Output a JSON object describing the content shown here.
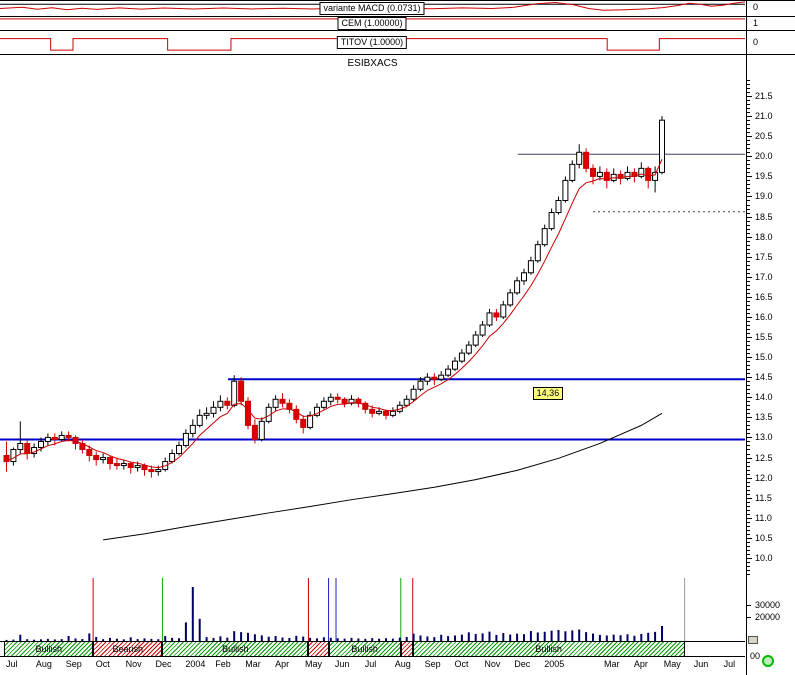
{
  "window": {
    "title": "ESIBXACS"
  },
  "panels": [
    {
      "label": "variante MACD (0.0731)",
      "right_value": "0",
      "line_color": "#cc0000",
      "zero_line": 0.22,
      "points": [
        [
          0,
          0.5
        ],
        [
          0.03,
          0.42
        ],
        [
          0.05,
          0.55
        ],
        [
          0.07,
          0.45
        ],
        [
          0.09,
          0.58
        ],
        [
          0.11,
          0.48
        ],
        [
          0.13,
          0.56
        ],
        [
          0.16,
          0.46
        ],
        [
          0.19,
          0.54
        ],
        [
          0.22,
          0.47
        ],
        [
          0.26,
          0.53
        ],
        [
          0.3,
          0.47
        ],
        [
          0.34,
          0.53
        ],
        [
          0.38,
          0.48
        ],
        [
          0.42,
          0.53
        ],
        [
          0.46,
          0.47
        ],
        [
          0.5,
          0.53
        ],
        [
          0.54,
          0.48
        ],
        [
          0.58,
          0.52
        ],
        [
          0.62,
          0.46
        ],
        [
          0.66,
          0.5
        ],
        [
          0.69,
          0.42
        ],
        [
          0.72,
          0.18
        ],
        [
          0.745,
          0.1
        ],
        [
          0.77,
          0.25
        ],
        [
          0.79,
          0.5
        ],
        [
          0.81,
          0.62
        ],
        [
          0.84,
          0.58
        ],
        [
          0.87,
          0.52
        ],
        [
          0.89,
          0.44
        ],
        [
          0.91,
          0.3
        ],
        [
          0.925,
          0.15
        ],
        [
          0.94,
          0.22
        ],
        [
          0.955,
          0.35
        ],
        [
          0.97,
          0.28
        ],
        [
          0.985,
          0.15
        ],
        [
          1,
          0.06
        ]
      ]
    },
    {
      "label": "CEM (1.00000)",
      "right_value": "1",
      "line_color": "#cc0000",
      "points": [
        [
          0,
          0.14
        ],
        [
          1,
          0.14
        ]
      ]
    },
    {
      "label": "TITOV (1.0000)",
      "right_value": "0",
      "line_color": "#cc0000",
      "points": [
        [
          0,
          0.33
        ],
        [
          0.068,
          0.33
        ],
        [
          0.068,
          0.83
        ],
        [
          0.098,
          0.83
        ],
        [
          0.098,
          0.33
        ],
        [
          0.225,
          0.33
        ],
        [
          0.225,
          0.83
        ],
        [
          0.31,
          0.83
        ],
        [
          0.31,
          0.33
        ],
        [
          0.815,
          0.33
        ],
        [
          0.815,
          0.83
        ],
        [
          0.885,
          0.83
        ],
        [
          0.885,
          0.33
        ],
        [
          1,
          0.33
        ]
      ]
    }
  ],
  "chart_data": {
    "type": "candlestick",
    "symbol": "ESIBXACS",
    "period": "weekly",
    "ylim": [
      9.5,
      22.0
    ],
    "y_axis": {
      "min": 10.0,
      "max": 21.5,
      "step": 0.5
    },
    "x_labels": [
      {
        "t": "Jul",
        "m": 0
      },
      {
        "t": "Aug",
        "m": 1
      },
      {
        "t": "Sep",
        "m": 2
      },
      {
        "t": "Oct",
        "m": 3
      },
      {
        "t": "Nov",
        "m": 4
      },
      {
        "t": "Dec",
        "m": 5
      },
      {
        "t": "2004",
        "m": 6
      },
      {
        "t": "Feb",
        "m": 7
      },
      {
        "t": "Mar",
        "m": 8
      },
      {
        "t": "Apr",
        "m": 9
      },
      {
        "t": "May",
        "m": 10
      },
      {
        "t": "Jun",
        "m": 11
      },
      {
        "t": "Jul",
        "m": 12
      },
      {
        "t": "Aug",
        "m": 13
      },
      {
        "t": "Sep",
        "m": 14
      },
      {
        "t": "Oct",
        "m": 15
      },
      {
        "t": "Nov",
        "m": 16
      },
      {
        "t": "Dec",
        "m": 17
      },
      {
        "t": "2005",
        "m": 18
      },
      {
        "t": "Mar",
        "m": 20
      },
      {
        "t": "Apr",
        "m": 21
      },
      {
        "t": "May",
        "m": 22
      },
      {
        "t": "Jun",
        "m": 23
      },
      {
        "t": "Jul",
        "m": 24
      }
    ],
    "candles": [
      [
        12.55,
        12.9,
        12.15,
        12.4
      ],
      [
        12.4,
        12.75,
        12.3,
        12.7
      ],
      [
        12.7,
        13.4,
        12.6,
        12.85
      ],
      [
        12.85,
        12.95,
        12.45,
        12.6
      ],
      [
        12.6,
        12.85,
        12.5,
        12.75
      ],
      [
        12.75,
        13.0,
        12.65,
        12.9
      ],
      [
        12.9,
        13.1,
        12.8,
        13.0
      ],
      [
        13.0,
        13.1,
        12.8,
        12.95
      ],
      [
        12.95,
        13.15,
        12.9,
        13.05
      ],
      [
        13.05,
        13.15,
        12.9,
        13.0
      ],
      [
        13.0,
        13.05,
        12.7,
        12.85
      ],
      [
        12.85,
        12.95,
        12.6,
        12.7
      ],
      [
        12.7,
        12.8,
        12.4,
        12.55
      ],
      [
        12.55,
        12.65,
        12.3,
        12.45
      ],
      [
        12.45,
        12.6,
        12.35,
        12.5
      ],
      [
        12.5,
        12.55,
        12.2,
        12.35
      ],
      [
        12.35,
        12.5,
        12.2,
        12.3
      ],
      [
        12.3,
        12.45,
        12.2,
        12.35
      ],
      [
        12.35,
        12.4,
        12.1,
        12.25
      ],
      [
        12.25,
        12.4,
        12.15,
        12.3
      ],
      [
        12.3,
        12.35,
        12.05,
        12.2
      ],
      [
        12.2,
        12.3,
        12.0,
        12.15
      ],
      [
        12.15,
        12.3,
        12.05,
        12.2
      ],
      [
        12.2,
        12.5,
        12.15,
        12.4
      ],
      [
        12.4,
        12.7,
        12.35,
        12.6
      ],
      [
        12.6,
        12.9,
        12.55,
        12.8
      ],
      [
        12.8,
        13.2,
        12.75,
        13.1
      ],
      [
        13.1,
        13.45,
        13.0,
        13.3
      ],
      [
        13.3,
        13.7,
        13.25,
        13.55
      ],
      [
        13.55,
        13.75,
        13.45,
        13.6
      ],
      [
        13.6,
        13.9,
        13.5,
        13.75
      ],
      [
        13.75,
        14.05,
        13.65,
        13.9
      ],
      [
        13.9,
        14.0,
        13.7,
        13.8
      ],
      [
        13.8,
        14.55,
        13.75,
        14.4
      ],
      [
        14.4,
        14.5,
        13.8,
        13.9
      ],
      [
        13.9,
        14.0,
        13.2,
        13.3
      ],
      [
        13.3,
        13.45,
        12.85,
        12.95
      ],
      [
        12.95,
        13.5,
        12.9,
        13.4
      ],
      [
        13.4,
        13.85,
        13.35,
        13.75
      ],
      [
        13.75,
        14.05,
        13.65,
        13.95
      ],
      [
        13.95,
        14.1,
        13.75,
        13.85
      ],
      [
        13.85,
        13.95,
        13.6,
        13.7
      ],
      [
        13.7,
        13.8,
        13.35,
        13.45
      ],
      [
        13.45,
        13.55,
        13.1,
        13.25
      ],
      [
        13.25,
        13.65,
        13.2,
        13.55
      ],
      [
        13.55,
        13.85,
        13.5,
        13.75
      ],
      [
        13.75,
        14.0,
        13.7,
        13.9
      ],
      [
        13.9,
        14.1,
        13.8,
        14.0
      ],
      [
        14.0,
        14.1,
        13.85,
        13.95
      ],
      [
        13.95,
        14.0,
        13.75,
        13.85
      ],
      [
        13.85,
        14.05,
        13.8,
        13.95
      ],
      [
        13.95,
        14.0,
        13.75,
        13.85
      ],
      [
        13.85,
        13.9,
        13.6,
        13.7
      ],
      [
        13.7,
        13.8,
        13.5,
        13.6
      ],
      [
        13.6,
        13.75,
        13.55,
        13.65
      ],
      [
        13.65,
        13.7,
        13.45,
        13.55
      ],
      [
        13.55,
        13.75,
        13.5,
        13.65
      ],
      [
        13.65,
        13.9,
        13.6,
        13.8
      ],
      [
        13.8,
        14.05,
        13.75,
        13.95
      ],
      [
        13.95,
        14.3,
        13.9,
        14.2
      ],
      [
        14.2,
        14.5,
        14.15,
        14.4
      ],
      [
        14.4,
        14.6,
        14.3,
        14.5
      ],
      [
        14.5,
        14.6,
        14.3,
        14.45
      ],
      [
        14.45,
        14.65,
        14.4,
        14.55
      ],
      [
        14.55,
        14.8,
        14.5,
        14.7
      ],
      [
        14.7,
        15.0,
        14.65,
        14.9
      ],
      [
        14.9,
        15.2,
        14.85,
        15.1
      ],
      [
        15.1,
        15.4,
        15.05,
        15.3
      ],
      [
        15.3,
        15.65,
        15.25,
        15.55
      ],
      [
        15.55,
        15.9,
        15.5,
        15.8
      ],
      [
        15.8,
        16.2,
        15.75,
        16.1
      ],
      [
        16.1,
        16.2,
        15.9,
        16.0
      ],
      [
        16.0,
        16.4,
        15.95,
        16.3
      ],
      [
        16.3,
        16.7,
        16.25,
        16.6
      ],
      [
        16.6,
        17.0,
        16.55,
        16.9
      ],
      [
        16.9,
        17.2,
        16.8,
        17.1
      ],
      [
        17.1,
        17.5,
        17.05,
        17.4
      ],
      [
        17.4,
        17.9,
        17.35,
        17.8
      ],
      [
        17.8,
        18.3,
        17.75,
        18.2
      ],
      [
        18.2,
        18.7,
        18.15,
        18.6
      ],
      [
        18.6,
        19.0,
        18.55,
        18.9
      ],
      [
        18.9,
        19.5,
        18.85,
        19.4
      ],
      [
        19.4,
        19.9,
        19.35,
        19.8
      ],
      [
        19.8,
        20.3,
        19.7,
        20.1
      ],
      [
        20.1,
        20.2,
        19.6,
        19.7
      ],
      [
        19.7,
        19.8,
        19.3,
        19.5
      ],
      [
        19.5,
        19.75,
        19.4,
        19.6
      ],
      [
        19.6,
        19.7,
        19.2,
        19.4
      ],
      [
        19.4,
        19.7,
        19.35,
        19.55
      ],
      [
        19.55,
        19.65,
        19.3,
        19.45
      ],
      [
        19.45,
        19.75,
        19.4,
        19.6
      ],
      [
        19.6,
        19.7,
        19.35,
        19.5
      ],
      [
        19.5,
        19.85,
        19.45,
        19.7
      ],
      [
        19.7,
        19.75,
        19.2,
        19.4
      ],
      [
        19.4,
        19.75,
        19.1,
        19.6
      ],
      [
        19.6,
        21.0,
        19.55,
        20.9
      ]
    ],
    "ma_period": 6,
    "ma_color": "#cc0000",
    "long_ma": {
      "color": "#000000",
      "indices": [
        14,
        20,
        26,
        32,
        38,
        44,
        50,
        56,
        62,
        68,
        74,
        80,
        86,
        92,
        95
      ],
      "values": [
        10.45,
        10.6,
        10.78,
        10.95,
        11.12,
        11.28,
        11.45,
        11.6,
        11.76,
        11.95,
        12.18,
        12.48,
        12.85,
        13.3,
        13.6
      ]
    },
    "h_lines": [
      {
        "price": 14.45,
        "x1_frac": 0.306,
        "color": "#0000cc",
        "width": 2
      },
      {
        "price": 12.95,
        "x1_frac": 0.0,
        "color": "#0000cc",
        "width": 2
      },
      {
        "price": 20.05,
        "x1_frac": 0.695,
        "color": "#404060",
        "width": 1
      },
      {
        "price": 18.62,
        "x1_frac": 0.796,
        "color": "#404040",
        "width": 1,
        "dash": "2,3"
      }
    ],
    "price_tag": {
      "text": "14,36",
      "price": 14.36,
      "x_frac": 0.715,
      "bg": "#ffff80"
    },
    "volume": [
      900,
      1200,
      5200,
      1500,
      1100,
      1400,
      1800,
      1300,
      1600,
      4200,
      2100,
      1700,
      6300,
      3400,
      1500,
      2600,
      1900,
      1400,
      3100,
      1600,
      2200,
      1800,
      1500,
      4100,
      2600,
      2300,
      15500,
      45000,
      18500,
      3200,
      2600,
      3900,
      2800,
      8200,
      7400,
      6800,
      5600,
      4700,
      3600,
      4200,
      2900,
      2500,
      4300,
      3700,
      2600,
      2200,
      3100,
      2700,
      2300,
      2000,
      2600,
      2100,
      1800,
      2400,
      1900,
      2300,
      2000,
      2800,
      3400,
      6100,
      4600,
      3800,
      3200,
      5200,
      4100,
      4600,
      5300,
      7200,
      5800,
      6400,
      7800,
      5100,
      6600,
      5400,
      6100,
      5700,
      8300,
      7100,
      7700,
      8600,
      9200,
      8100,
      8800,
      9600,
      7400,
      6200,
      5100,
      4600,
      5300,
      4800,
      5600,
      4400,
      5900,
      6800,
      7600,
      12500
    ],
    "volume_axis": [
      {
        "label": "30000",
        "value": 30000
      },
      {
        "label": "20000",
        "value": 20000
      }
    ],
    "event_lines": [
      {
        "f": 0.125,
        "color": "#cc0000"
      },
      {
        "f": 0.218,
        "color": "#00aa00"
      },
      {
        "f": 0.414,
        "color": "#cc0000"
      },
      {
        "f": 0.441,
        "color": "#2222cc"
      },
      {
        "f": 0.451,
        "color": "#2222cc"
      },
      {
        "f": 0.538,
        "color": "#00aa00"
      },
      {
        "f": 0.554,
        "color": "#cc0000"
      },
      {
        "f": 0.919,
        "color": "#999999"
      }
    ]
  },
  "ribbon": {
    "colors": {
      "bullish": "#009900",
      "bearish": "#cc0000"
    },
    "segments": [
      {
        "label": "Bullish",
        "state": "bullish",
        "f1": 0.006,
        "f2": 0.125
      },
      {
        "label": "Bearish",
        "state": "bearish",
        "f1": 0.125,
        "f2": 0.218
      },
      {
        "label": "Bullish",
        "state": "bullish",
        "f1": 0.218,
        "f2": 0.414
      },
      {
        "label": "",
        "state": "bearish",
        "f1": 0.414,
        "f2": 0.441
      },
      {
        "label": "Bullish",
        "state": "bullish",
        "f1": 0.441,
        "f2": 0.538
      },
      {
        "label": "",
        "state": "bearish",
        "f1": 0.538,
        "f2": 0.554
      },
      {
        "label": "Bullish",
        "state": "bullish",
        "f1": 0.554,
        "f2": 0.919
      }
    ]
  },
  "misc": {
    "partial_label": "00"
  }
}
